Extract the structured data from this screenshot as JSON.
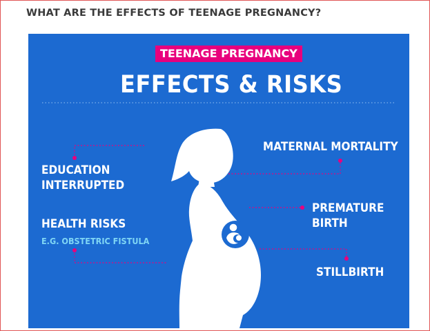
{
  "page": {
    "heading": "WHAT ARE THE EFFECTS OF TEENAGE PREGNANCY?"
  },
  "infographic": {
    "badge": "TEENAGE PREGNANCY",
    "title": "EFFECTS & RISKS",
    "effects": {
      "education_line1": "EDUCATION",
      "education_line2": "INTERRUPTED",
      "health_risks": "HEALTH RISKS",
      "health_risks_example": "E.G. OBSTETRIC FISTULA",
      "maternal_mortality": "MATERNAL MORTALITY",
      "premature_line1": "PREMATURE",
      "premature_line2": "BIRTH",
      "stillbirth": "STILLBIRTH"
    },
    "colors": {
      "background": "#1c6ad1",
      "accent": "#e8007d",
      "text": "#ffffff",
      "subtext": "#7fd6f5"
    },
    "icons": [
      "pregnant-woman-silhouette",
      "fetus-icon"
    ]
  }
}
